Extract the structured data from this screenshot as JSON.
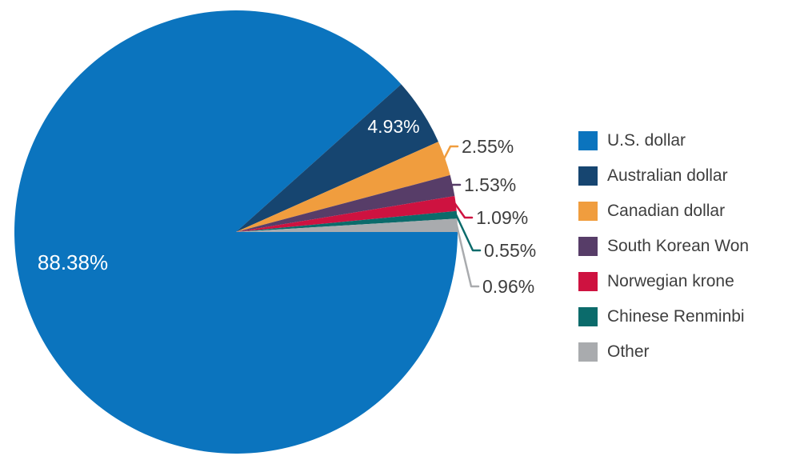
{
  "figure": {
    "background": "#ffffff"
  },
  "chart_data": {
    "type": "pie",
    "title": "",
    "legend_position": "right",
    "start_angle_deg": 0,
    "direction": "clockwise",
    "label_style": {
      "inside_color": "#ffffff",
      "outside_color": "#3e3e3e"
    },
    "slices": [
      {
        "label": "U.S. dollar",
        "value": 88.38,
        "value_label": "88.38%",
        "color": "#0b74be",
        "label_placement": "inside"
      },
      {
        "label": "Australian dollar",
        "value": 4.93,
        "value_label": "4.93%",
        "color": "#164570",
        "label_placement": "inside"
      },
      {
        "label": "Canadian dollar",
        "value": 2.55,
        "value_label": "2.55%",
        "color": "#f09d3e",
        "label_placement": "outside"
      },
      {
        "label": "South Korean Won",
        "value": 1.53,
        "value_label": "1.53%",
        "color": "#573d68",
        "label_placement": "outside"
      },
      {
        "label": "Norwegian krone",
        "value": 1.09,
        "value_label": "1.09%",
        "color": "#ce1240",
        "label_placement": "outside"
      },
      {
        "label": "Chinese Renminbi",
        "value": 0.55,
        "value_label": "0.55%",
        "color": "#0b6b6b",
        "label_placement": "outside"
      },
      {
        "label": "Other",
        "value": 0.96,
        "value_label": "0.96%",
        "color": "#a9abae",
        "label_placement": "outside"
      }
    ]
  }
}
